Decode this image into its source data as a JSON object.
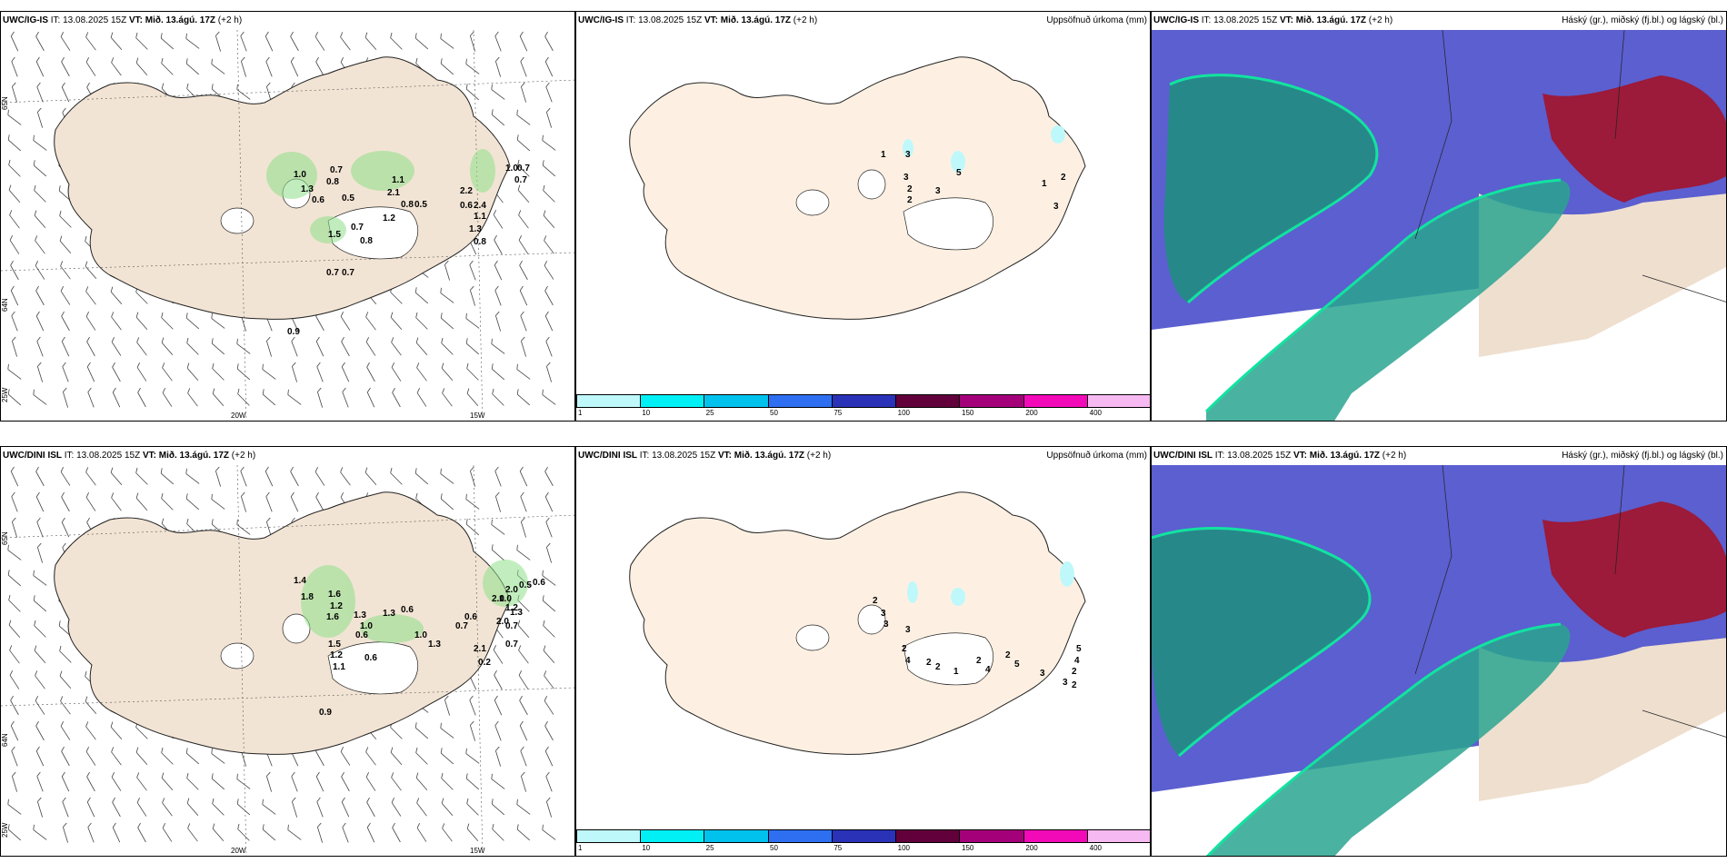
{
  "panels": [
    {
      "id": "p1",
      "model": "UWC/IG-IS",
      "it_label": "IT:",
      "it": "13.08.2025 15Z",
      "vt_label": "VT:",
      "vt": "Mið. 13.ágú. 17Z",
      "lead": "(+2 h)",
      "right": ""
    },
    {
      "id": "p2",
      "model": "UWC/IG-IS",
      "it_label": "IT:",
      "it": "13.08.2025 15Z",
      "vt_label": "VT:",
      "vt": "Mið. 13.ágú. 17Z",
      "lead": "(+2 h)",
      "right": "Uppsöfnuð úrkoma (mm)"
    },
    {
      "id": "p3",
      "model": "UWC/IG-IS",
      "it_label": "IT:",
      "it": "13.08.2025 15Z",
      "vt_label": "VT:",
      "vt": "Mið. 13.ágú. 17Z",
      "lead": "(+2 h)",
      "right": "Háský (gr.), miðský (fj.bl.) og lágský (bl.)"
    },
    {
      "id": "p4",
      "model": "UWC/DINI ISL",
      "it_label": "IT:",
      "it": "13.08.2025 15Z",
      "vt_label": "VT:",
      "vt": "Mið. 13.ágú. 17Z",
      "lead": "(+2 h)",
      "right": ""
    },
    {
      "id": "p5",
      "model": "UWC/DINI ISL",
      "it_label": "IT:",
      "it": "13.08.2025 15Z",
      "vt_label": "VT:",
      "vt": "Mið. 13.ágú. 17Z",
      "lead": "(+2 h)",
      "right": "Uppsöfnuð úrkoma (mm)"
    },
    {
      "id": "p6",
      "model": "UWC/DINI ISL",
      "it_label": "IT:",
      "it": "13.08.2025 15Z",
      "vt_label": "VT:",
      "vt": "Mið. 13.ágú. 17Z",
      "lead": "(+2 h)",
      "right": "Háský (gr.), miðský (fj.bl.) og lágský (bl.)"
    }
  ],
  "axes": {
    "lon": [
      "20W",
      "15W"
    ],
    "lat": [
      "65N",
      "64N",
      "25W"
    ]
  },
  "colorbar": {
    "ticks": [
      "1",
      "10",
      "25",
      "50",
      "75",
      "100",
      "150",
      "200",
      "400"
    ],
    "colors": [
      "#bff8fb",
      "#00f0f5",
      "#00c2ec",
      "#2d6ff0",
      "#2a32b8",
      "#62003b",
      "#a4007a",
      "#f20ab9",
      "#f7b9f1"
    ]
  },
  "wind_max": {
    "p1": [
      "1.0",
      "0.7",
      "0.8",
      "1.3",
      "1.1",
      "0.6",
      "0.5",
      "2.1",
      "0.8",
      "0.5",
      "1.2",
      "1.5",
      "0.7",
      "0.8",
      "0.7",
      "0.7",
      "0.9",
      "2.2",
      "0.6",
      "2.4",
      "1.1",
      "1.3",
      "0.8",
      "1.0",
      "0.7",
      "0.7"
    ],
    "p4": [
      "1.4",
      "1.8",
      "1.6",
      "1.2",
      "1.6",
      "1.3",
      "1.3",
      "0.6",
      "1.0",
      "1.5",
      "1.2",
      "0.6",
      "1.1",
      "0.6",
      "1.0",
      "0.7",
      "1.3",
      "2.0",
      "1.0",
      "1.2",
      "1.3",
      "0.6",
      "2.0",
      "0.5",
      "0.6",
      "2.0",
      "0.7",
      "0.7",
      "0.9",
      "2.1",
      "0.2"
    ]
  },
  "precip": {
    "p2": [
      "1",
      "3",
      "3",
      "2",
      "2",
      "3",
      "5",
      "1",
      "2",
      "3"
    ],
    "p5": [
      "2",
      "3",
      "3",
      "3",
      "2",
      "4",
      "2",
      "2",
      "1",
      "2",
      "4",
      "2",
      "5",
      "3",
      "3",
      "5",
      "4",
      "2",
      "2"
    ]
  }
}
